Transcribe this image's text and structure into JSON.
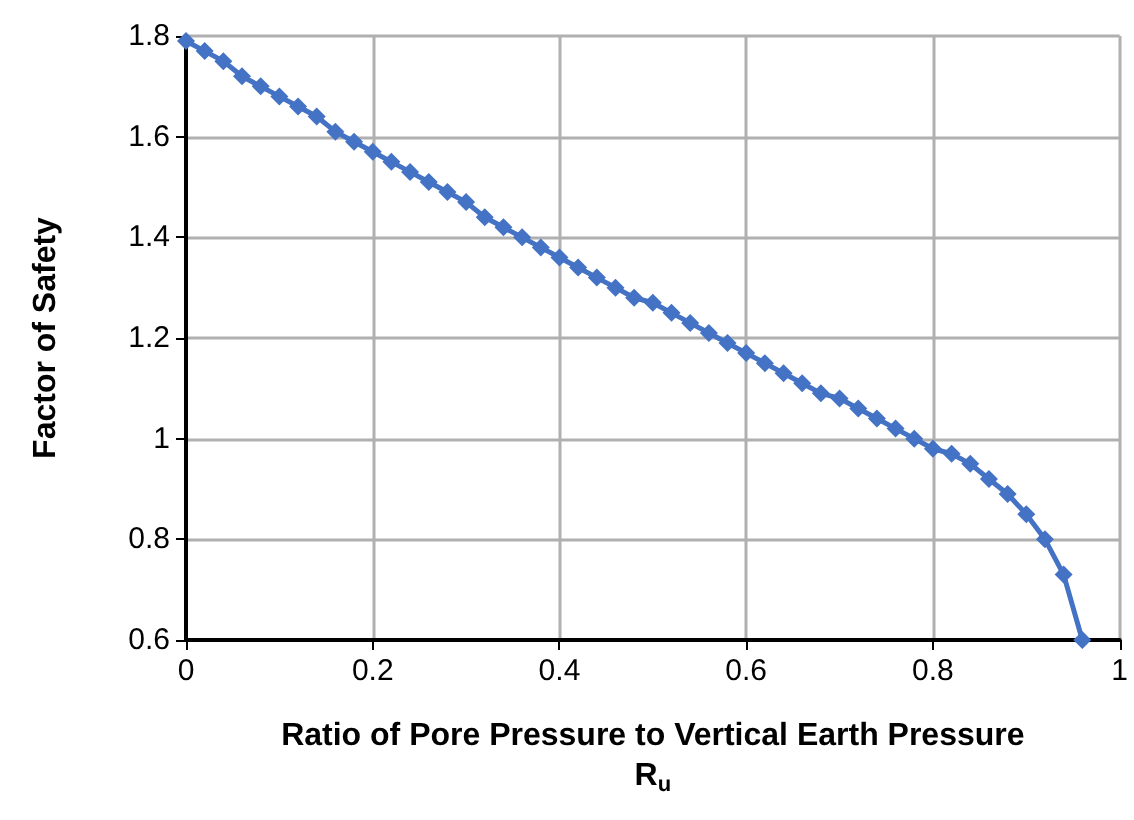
{
  "chart_data": {
    "type": "line",
    "xlabel": "Ratio of Pore Pressure to Vertical Earth Pressure\nR$_{u}$",
    "ylabel": "Factor of Safety",
    "x": [
      0,
      0.02,
      0.04,
      0.06,
      0.08,
      0.1,
      0.12,
      0.14,
      0.16,
      0.18,
      0.2,
      0.22,
      0.24,
      0.26,
      0.28,
      0.3,
      0.32,
      0.34,
      0.36,
      0.38,
      0.4,
      0.42,
      0.44,
      0.46,
      0.48,
      0.5,
      0.52,
      0.54,
      0.56,
      0.58,
      0.6,
      0.62,
      0.64,
      0.66,
      0.68,
      0.7,
      0.72,
      0.74,
      0.76,
      0.78,
      0.8,
      0.82,
      0.84,
      0.86,
      0.88,
      0.9,
      0.92,
      0.94,
      0.96
    ],
    "series": [
      {
        "color": "#4472c4",
        "values": [
          1.79,
          1.77,
          1.75,
          1.72,
          1.7,
          1.68,
          1.66,
          1.64,
          1.61,
          1.59,
          1.57,
          1.55,
          1.53,
          1.51,
          1.49,
          1.47,
          1.44,
          1.42,
          1.4,
          1.38,
          1.36,
          1.34,
          1.32,
          1.3,
          1.28,
          1.27,
          1.25,
          1.23,
          1.21,
          1.19,
          1.17,
          1.15,
          1.13,
          1.11,
          1.09,
          1.08,
          1.06,
          1.04,
          1.02,
          1.0,
          0.98,
          0.97,
          0.95,
          0.92,
          0.89,
          0.85,
          0.8,
          0.73,
          0.6
        ]
      }
    ],
    "xlim": [
      0,
      1
    ],
    "xticks": [
      0,
      0.2,
      0.4,
      0.6,
      0.8,
      1
    ],
    "ylim": [
      0.6,
      1.8
    ],
    "yticks": [
      0.6,
      0.8,
      1,
      1.2,
      1.4,
      1.6,
      1.8
    ],
    "grid": true,
    "marker": "diamond",
    "line_style": "solid"
  }
}
